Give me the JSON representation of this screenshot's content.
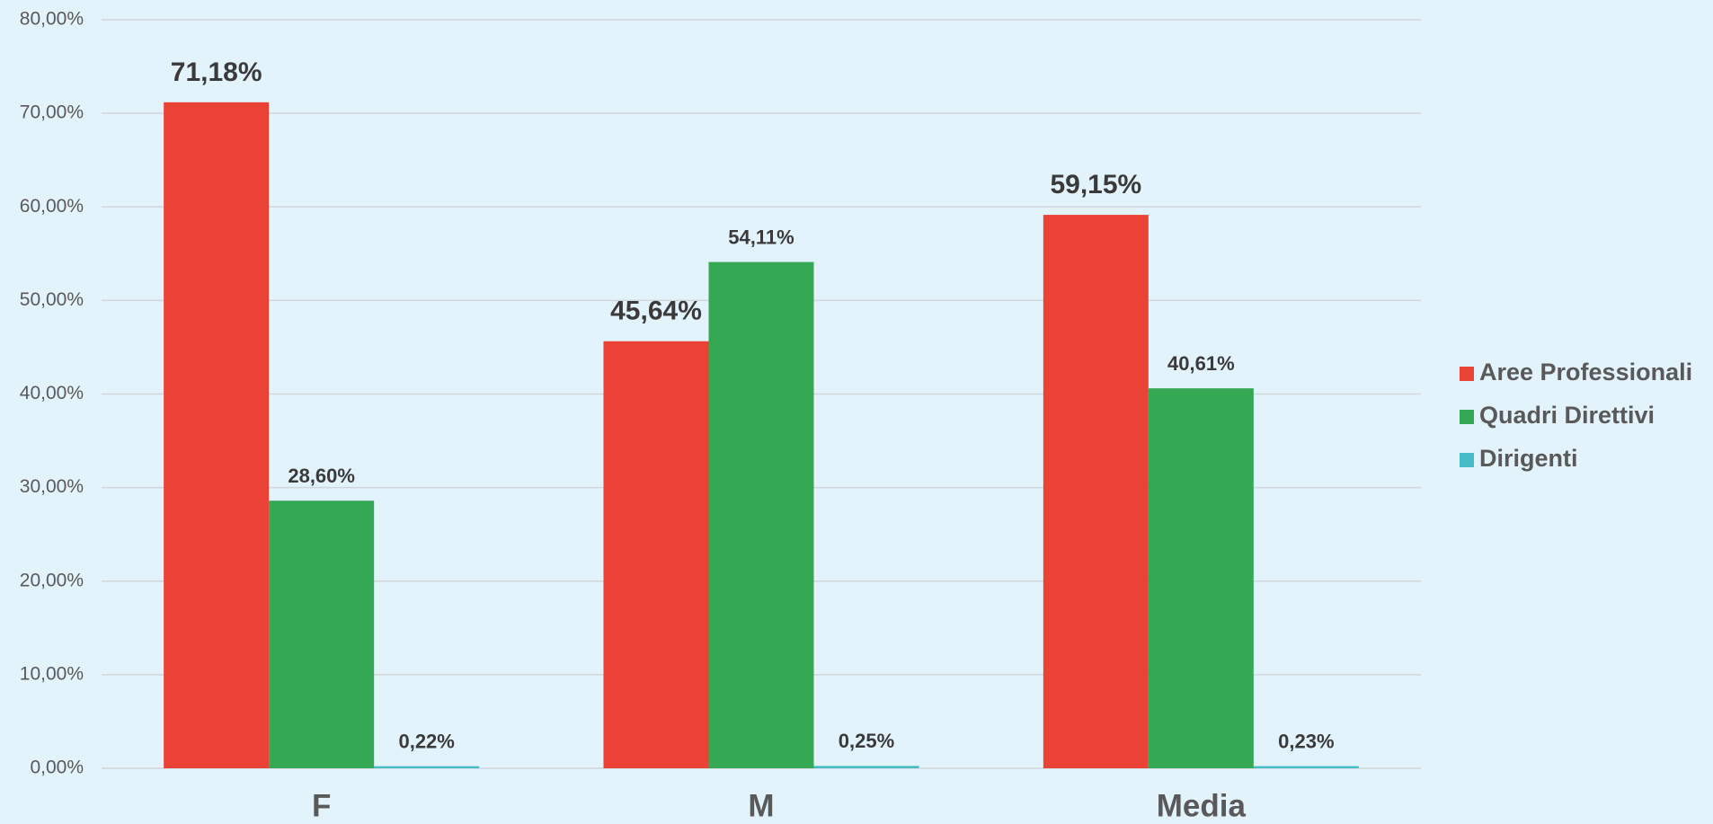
{
  "chart_data": {
    "type": "bar",
    "categories": [
      "F",
      "M",
      "Media"
    ],
    "series": [
      {
        "name": "Aree Professionali",
        "color": "#ea4335",
        "values": [
          71.18,
          45.64,
          59.15
        ],
        "value_labels": [
          "71,18%",
          "45,64%",
          "59,15%"
        ]
      },
      {
        "name": "Quadri Direttivi",
        "color": "#34a853",
        "values": [
          28.6,
          54.11,
          40.61
        ],
        "value_labels": [
          "28,60%",
          "54,11%",
          "40,61%"
        ]
      },
      {
        "name": "Dirigenti",
        "color": "#46bdc6",
        "values": [
          0.22,
          0.25,
          0.23
        ],
        "value_labels": [
          "0,22%",
          "0,25%",
          "0,23%"
        ]
      }
    ],
    "ylim": [
      0,
      80
    ],
    "yticks": [
      {
        "value": 0,
        "label": "0,00%"
      },
      {
        "value": 10,
        "label": "10,00%"
      },
      {
        "value": 20,
        "label": "20,00%"
      },
      {
        "value": 30,
        "label": "30,00%"
      },
      {
        "value": 40,
        "label": "40,00%"
      },
      {
        "value": 50,
        "label": "50,00%"
      },
      {
        "value": 60,
        "label": "60,00%"
      },
      {
        "value": 70,
        "label": "70,00%"
      },
      {
        "value": 80,
        "label": "80,00%"
      }
    ],
    "grid": true,
    "legend": "right"
  }
}
